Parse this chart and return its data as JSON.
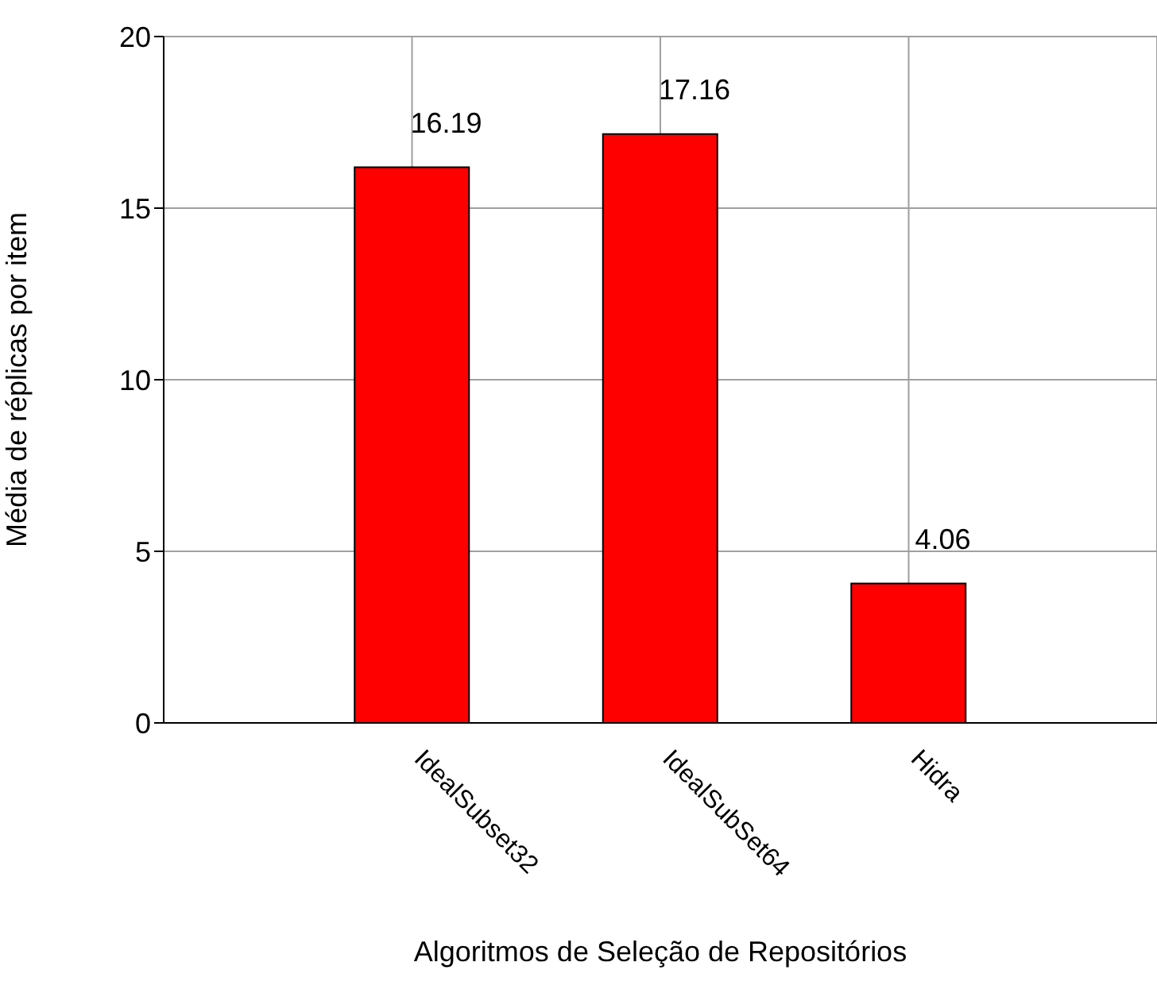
{
  "chart_data": {
    "type": "bar",
    "xlabel": "Algoritmos de Seleção de Repositórios",
    "ylabel": "Média de réplicas por item",
    "categories": [
      null,
      "IdealSubset32",
      "IdealSubSet64",
      "Hidra"
    ],
    "values": [
      null,
      16.19,
      17.16,
      4.06
    ],
    "color": "#ff0000",
    "ylim": [
      0,
      20
    ],
    "yticks": [
      0,
      5,
      10,
      15,
      20
    ],
    "grid": true,
    "data_labels": true
  }
}
